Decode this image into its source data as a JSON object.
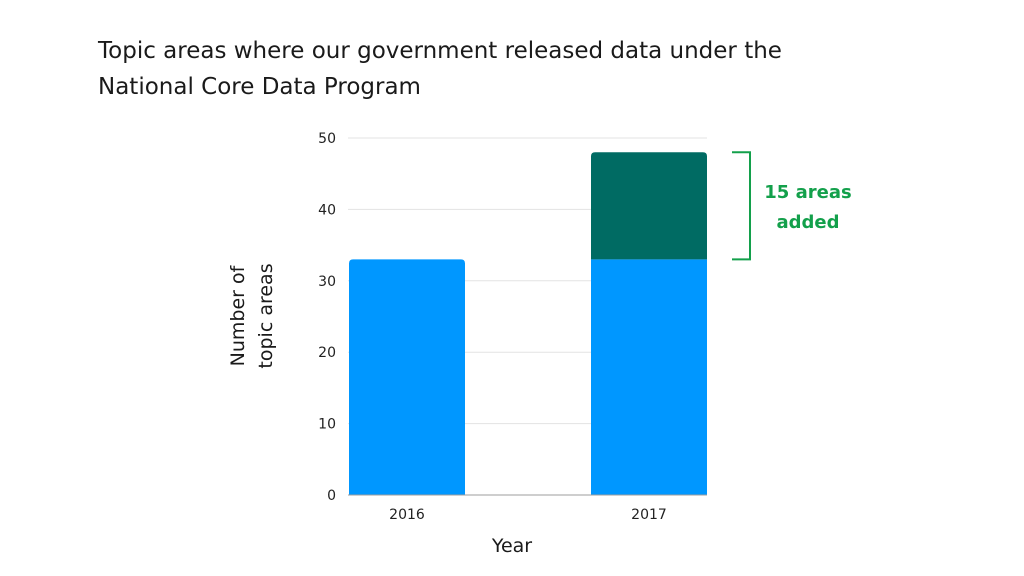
{
  "title_lines": [
    "Topic areas where our government released data under the",
    "National Core Data Program"
  ],
  "colors": {
    "base": "#0097ff",
    "added": "#006b63",
    "annotation": "#13a04b",
    "grid": "#e3e3e3"
  },
  "chart_data": {
    "type": "bar",
    "stacked": true,
    "categories": [
      "2016",
      "2017"
    ],
    "series": [
      {
        "values": [
          33,
          33
        ]
      },
      {
        "values": [
          0,
          15
        ]
      }
    ],
    "xlabel": "Year",
    "ylabel_lines": [
      "Number of",
      "topic areas"
    ],
    "ylim": [
      0,
      50
    ],
    "yticks": [
      0,
      10,
      20,
      30,
      40,
      50
    ],
    "grid": true,
    "annotation": {
      "category": "2017",
      "lines": [
        "15 areas",
        "added"
      ],
      "from": 33,
      "to": 48
    }
  }
}
